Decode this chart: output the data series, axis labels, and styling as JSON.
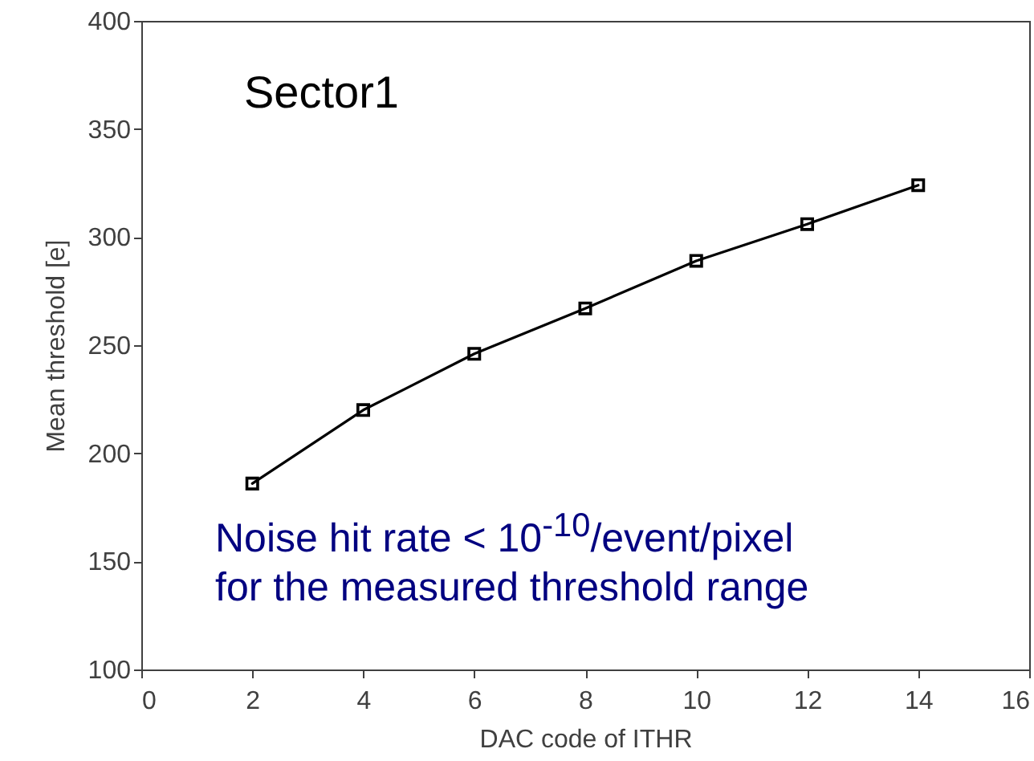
{
  "chart_data": {
    "type": "line",
    "xlabel": "DAC code of ITHR",
    "ylabel": "Mean threshold [e]",
    "x": [
      2,
      4,
      6,
      8,
      10,
      12,
      14
    ],
    "series": [
      {
        "color": "#000000",
        "values": [
          186,
          220,
          246,
          267,
          289,
          306,
          324
        ]
      }
    ],
    "xlim": [
      0,
      16
    ],
    "xticks": [
      0,
      2,
      4,
      6,
      8,
      10,
      12,
      14,
      16
    ],
    "ylim": [
      100,
      400
    ],
    "yticks": [
      100,
      150,
      200,
      250,
      300,
      350,
      400
    ],
    "grid": false,
    "marker": "square",
    "line_style": "solid",
    "annotations": [
      "Sector1",
      "Noise hit rate < 10$^{-10}$/event/pixel",
      "for the measured threshold range"
    ]
  }
}
